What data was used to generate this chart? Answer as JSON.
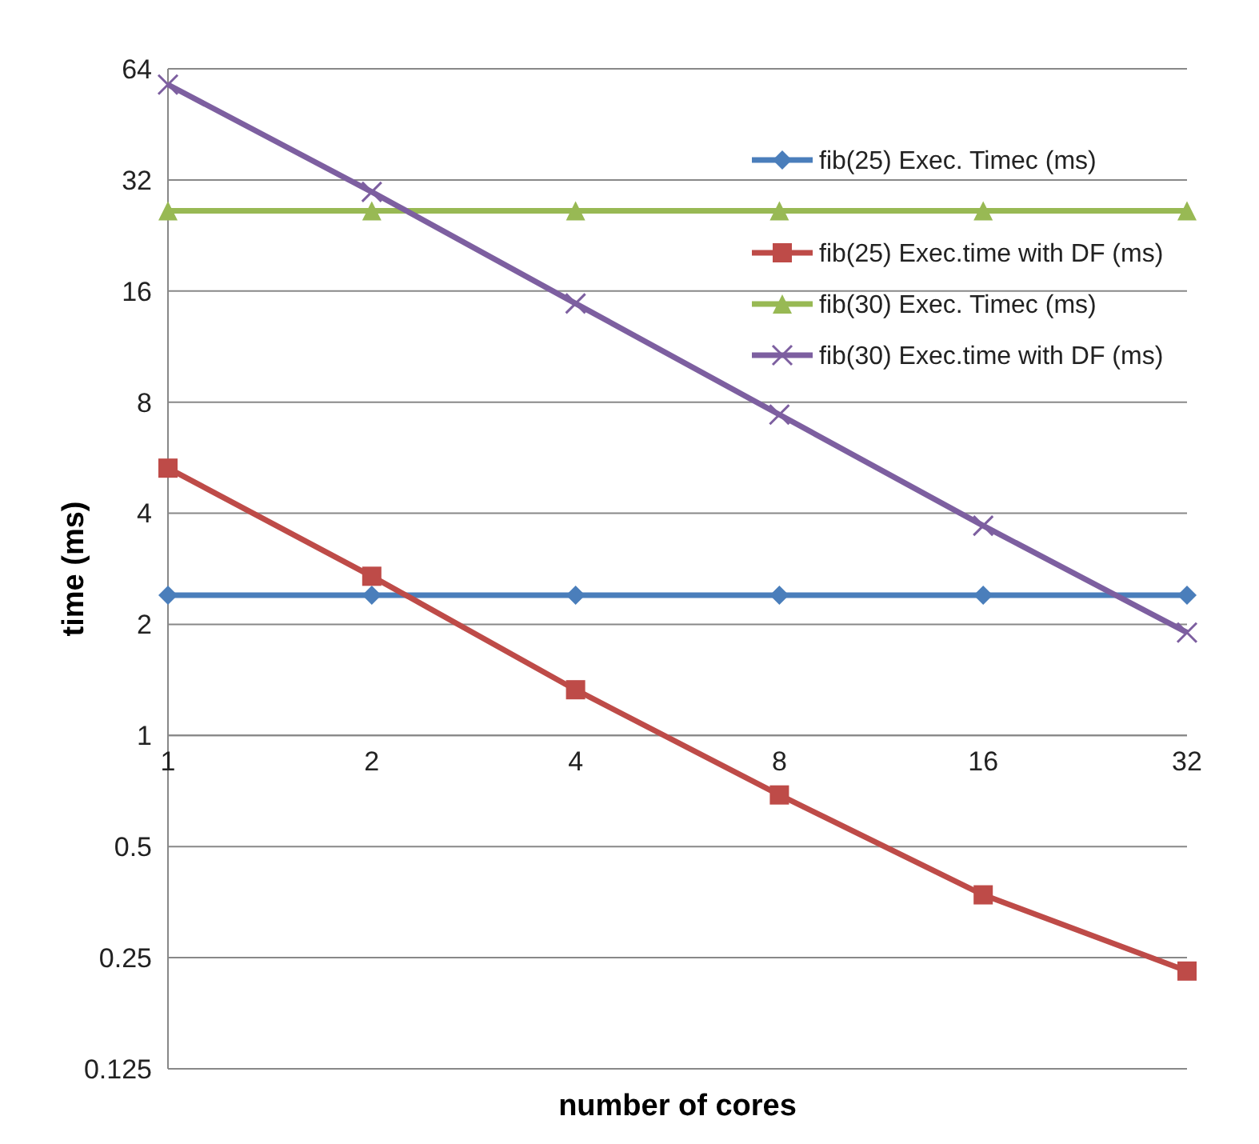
{
  "chart_data": {
    "type": "line",
    "xlabel": "number of cores",
    "ylabel": "time (ms)",
    "categories": [
      "1",
      "2",
      "4",
      "8",
      "16",
      "32"
    ],
    "log": "y",
    "ylim": [
      0.125,
      64
    ],
    "yticks": [
      0.125,
      0.25,
      0.5,
      1,
      2,
      4,
      8,
      16,
      32,
      64
    ],
    "grid": "y",
    "legend": "top right",
    "series": [
      {
        "name": "fib(25) Exec. Timec (ms)",
        "color": "#4a7ebb",
        "marker": "diamond",
        "values": [
          2.4,
          2.4,
          2.4,
          2.4,
          2.4,
          2.4
        ]
      },
      {
        "name": "fib(25) Exec.time with DF (ms)",
        "color": "#be4b48",
        "marker": "square",
        "values": [
          5.3,
          2.7,
          1.33,
          0.69,
          0.37,
          0.23
        ]
      },
      {
        "name": "fib(30) Exec. Timec (ms)",
        "color": "#98b954",
        "marker": "triangle",
        "values": [
          26.4,
          26.4,
          26.4,
          26.4,
          26.4,
          26.4
        ]
      },
      {
        "name": "fib(30) Exec.time with DF (ms)",
        "color": "#7d5fa0",
        "marker": "cross",
        "values": [
          58,
          29.7,
          14.8,
          7.4,
          3.7,
          1.9
        ]
      }
    ]
  }
}
